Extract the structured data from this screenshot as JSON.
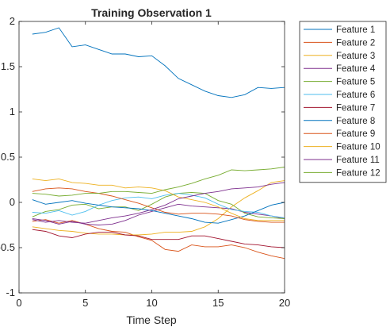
{
  "chart_data": {
    "type": "line",
    "title": "Training Observation 1",
    "xlabel": "Time Step",
    "ylabel": "",
    "xlim": [
      0,
      20
    ],
    "ylim": [
      -1,
      2
    ],
    "xticks": [
      "0",
      "5",
      "10",
      "15",
      "20"
    ],
    "yticks": [
      "-1",
      "-0.5",
      "0",
      "0.5",
      "1",
      "1.5",
      "2"
    ],
    "legend_position": "outside-right",
    "x": [
      1,
      2,
      3,
      4,
      5,
      6,
      7,
      8,
      9,
      10,
      11,
      12,
      13,
      14,
      15,
      16,
      17,
      18,
      19,
      20
    ],
    "series": [
      {
        "name": "Feature 1",
        "color": "#0072BD",
        "values": [
          1.86,
          1.88,
          1.93,
          1.72,
          1.74,
          1.69,
          1.64,
          1.64,
          1.61,
          1.62,
          1.51,
          1.37,
          1.3,
          1.23,
          1.18,
          1.16,
          1.19,
          1.27,
          1.26,
          1.27
        ]
      },
      {
        "name": "Feature 2",
        "color": "#D95319",
        "values": [
          -0.21,
          -0.19,
          -0.23,
          -0.2,
          -0.24,
          -0.29,
          -0.32,
          -0.33,
          -0.38,
          -0.42,
          -0.52,
          -0.54,
          -0.47,
          -0.49,
          -0.49,
          -0.47,
          -0.5,
          -0.55,
          -0.59,
          -0.62
        ]
      },
      {
        "name": "Feature 3",
        "color": "#EDB120",
        "values": [
          -0.27,
          -0.29,
          -0.31,
          -0.32,
          -0.34,
          -0.35,
          -0.35,
          -0.36,
          -0.36,
          -0.35,
          -0.33,
          -0.33,
          -0.32,
          -0.27,
          -0.18,
          -0.05,
          0.05,
          0.13,
          0.22,
          0.24
        ]
      },
      {
        "name": "Feature 4",
        "color": "#7E2F8E",
        "values": [
          -0.18,
          -0.2,
          -0.24,
          -0.21,
          -0.24,
          -0.25,
          -0.24,
          -0.2,
          -0.14,
          -0.1,
          -0.06,
          -0.02,
          -0.04,
          -0.05,
          -0.06,
          -0.07,
          -0.11,
          -0.13,
          -0.15,
          -0.18
        ]
      },
      {
        "name": "Feature 5",
        "color": "#77AC30",
        "values": [
          -0.16,
          -0.1,
          -0.08,
          -0.03,
          -0.02,
          -0.07,
          -0.05,
          -0.05,
          -0.09,
          -0.02,
          0.06,
          0.1,
          0.11,
          0.1,
          0.02,
          -0.02,
          -0.12,
          -0.16,
          -0.17,
          -0.18
        ]
      },
      {
        "name": "Feature 6",
        "color": "#4DBEEE",
        "values": [
          -0.11,
          -0.12,
          -0.09,
          -0.14,
          -0.1,
          -0.03,
          0.02,
          0.05,
          0.06,
          0.04,
          0.08,
          0.1,
          0.08,
          0.05,
          -0.02,
          -0.08,
          -0.1,
          -0.11,
          -0.15,
          -0.17
        ]
      },
      {
        "name": "Feature 7",
        "color": "#A2142F",
        "values": [
          -0.3,
          -0.32,
          -0.37,
          -0.39,
          -0.35,
          -0.33,
          -0.33,
          -0.36,
          -0.37,
          -0.41,
          -0.41,
          -0.41,
          -0.37,
          -0.37,
          -0.4,
          -0.43,
          -0.46,
          -0.47,
          -0.49,
          -0.5
        ]
      },
      {
        "name": "Feature 8",
        "color": "#0072BD",
        "values": [
          0.03,
          -0.02,
          0.0,
          0.02,
          -0.01,
          -0.03,
          -0.05,
          -0.06,
          -0.07,
          -0.09,
          -0.12,
          -0.15,
          -0.18,
          -0.22,
          -0.23,
          -0.19,
          -0.15,
          -0.09,
          -0.03,
          0.0
        ]
      },
      {
        "name": "Feature 9",
        "color": "#D95319",
        "values": [
          0.12,
          0.15,
          0.16,
          0.15,
          0.12,
          0.1,
          0.07,
          0.03,
          -0.01,
          -0.06,
          -0.11,
          -0.13,
          -0.12,
          -0.12,
          -0.13,
          -0.15,
          -0.19,
          -0.21,
          -0.22,
          -0.22
        ]
      },
      {
        "name": "Feature 10",
        "color": "#EDB120",
        "values": [
          0.26,
          0.24,
          0.26,
          0.22,
          0.21,
          0.19,
          0.19,
          0.16,
          0.17,
          0.16,
          0.13,
          0.06,
          0.03,
          0.0,
          -0.05,
          -0.12,
          -0.18,
          -0.2,
          -0.2,
          -0.2
        ]
      },
      {
        "name": "Feature 11",
        "color": "#7E2F8E",
        "values": [
          -0.19,
          -0.22,
          -0.2,
          -0.22,
          -0.23,
          -0.2,
          -0.17,
          -0.15,
          -0.12,
          -0.08,
          -0.03,
          0.04,
          0.07,
          0.1,
          0.12,
          0.15,
          0.16,
          0.17,
          0.2,
          0.22
        ]
      },
      {
        "name": "Feature 12",
        "color": "#77AC30",
        "values": [
          0.1,
          0.09,
          0.07,
          0.08,
          0.1,
          0.1,
          0.12,
          0.12,
          0.11,
          0.1,
          0.14,
          0.17,
          0.21,
          0.26,
          0.3,
          0.36,
          0.35,
          0.36,
          0.37,
          0.39
        ]
      }
    ]
  }
}
